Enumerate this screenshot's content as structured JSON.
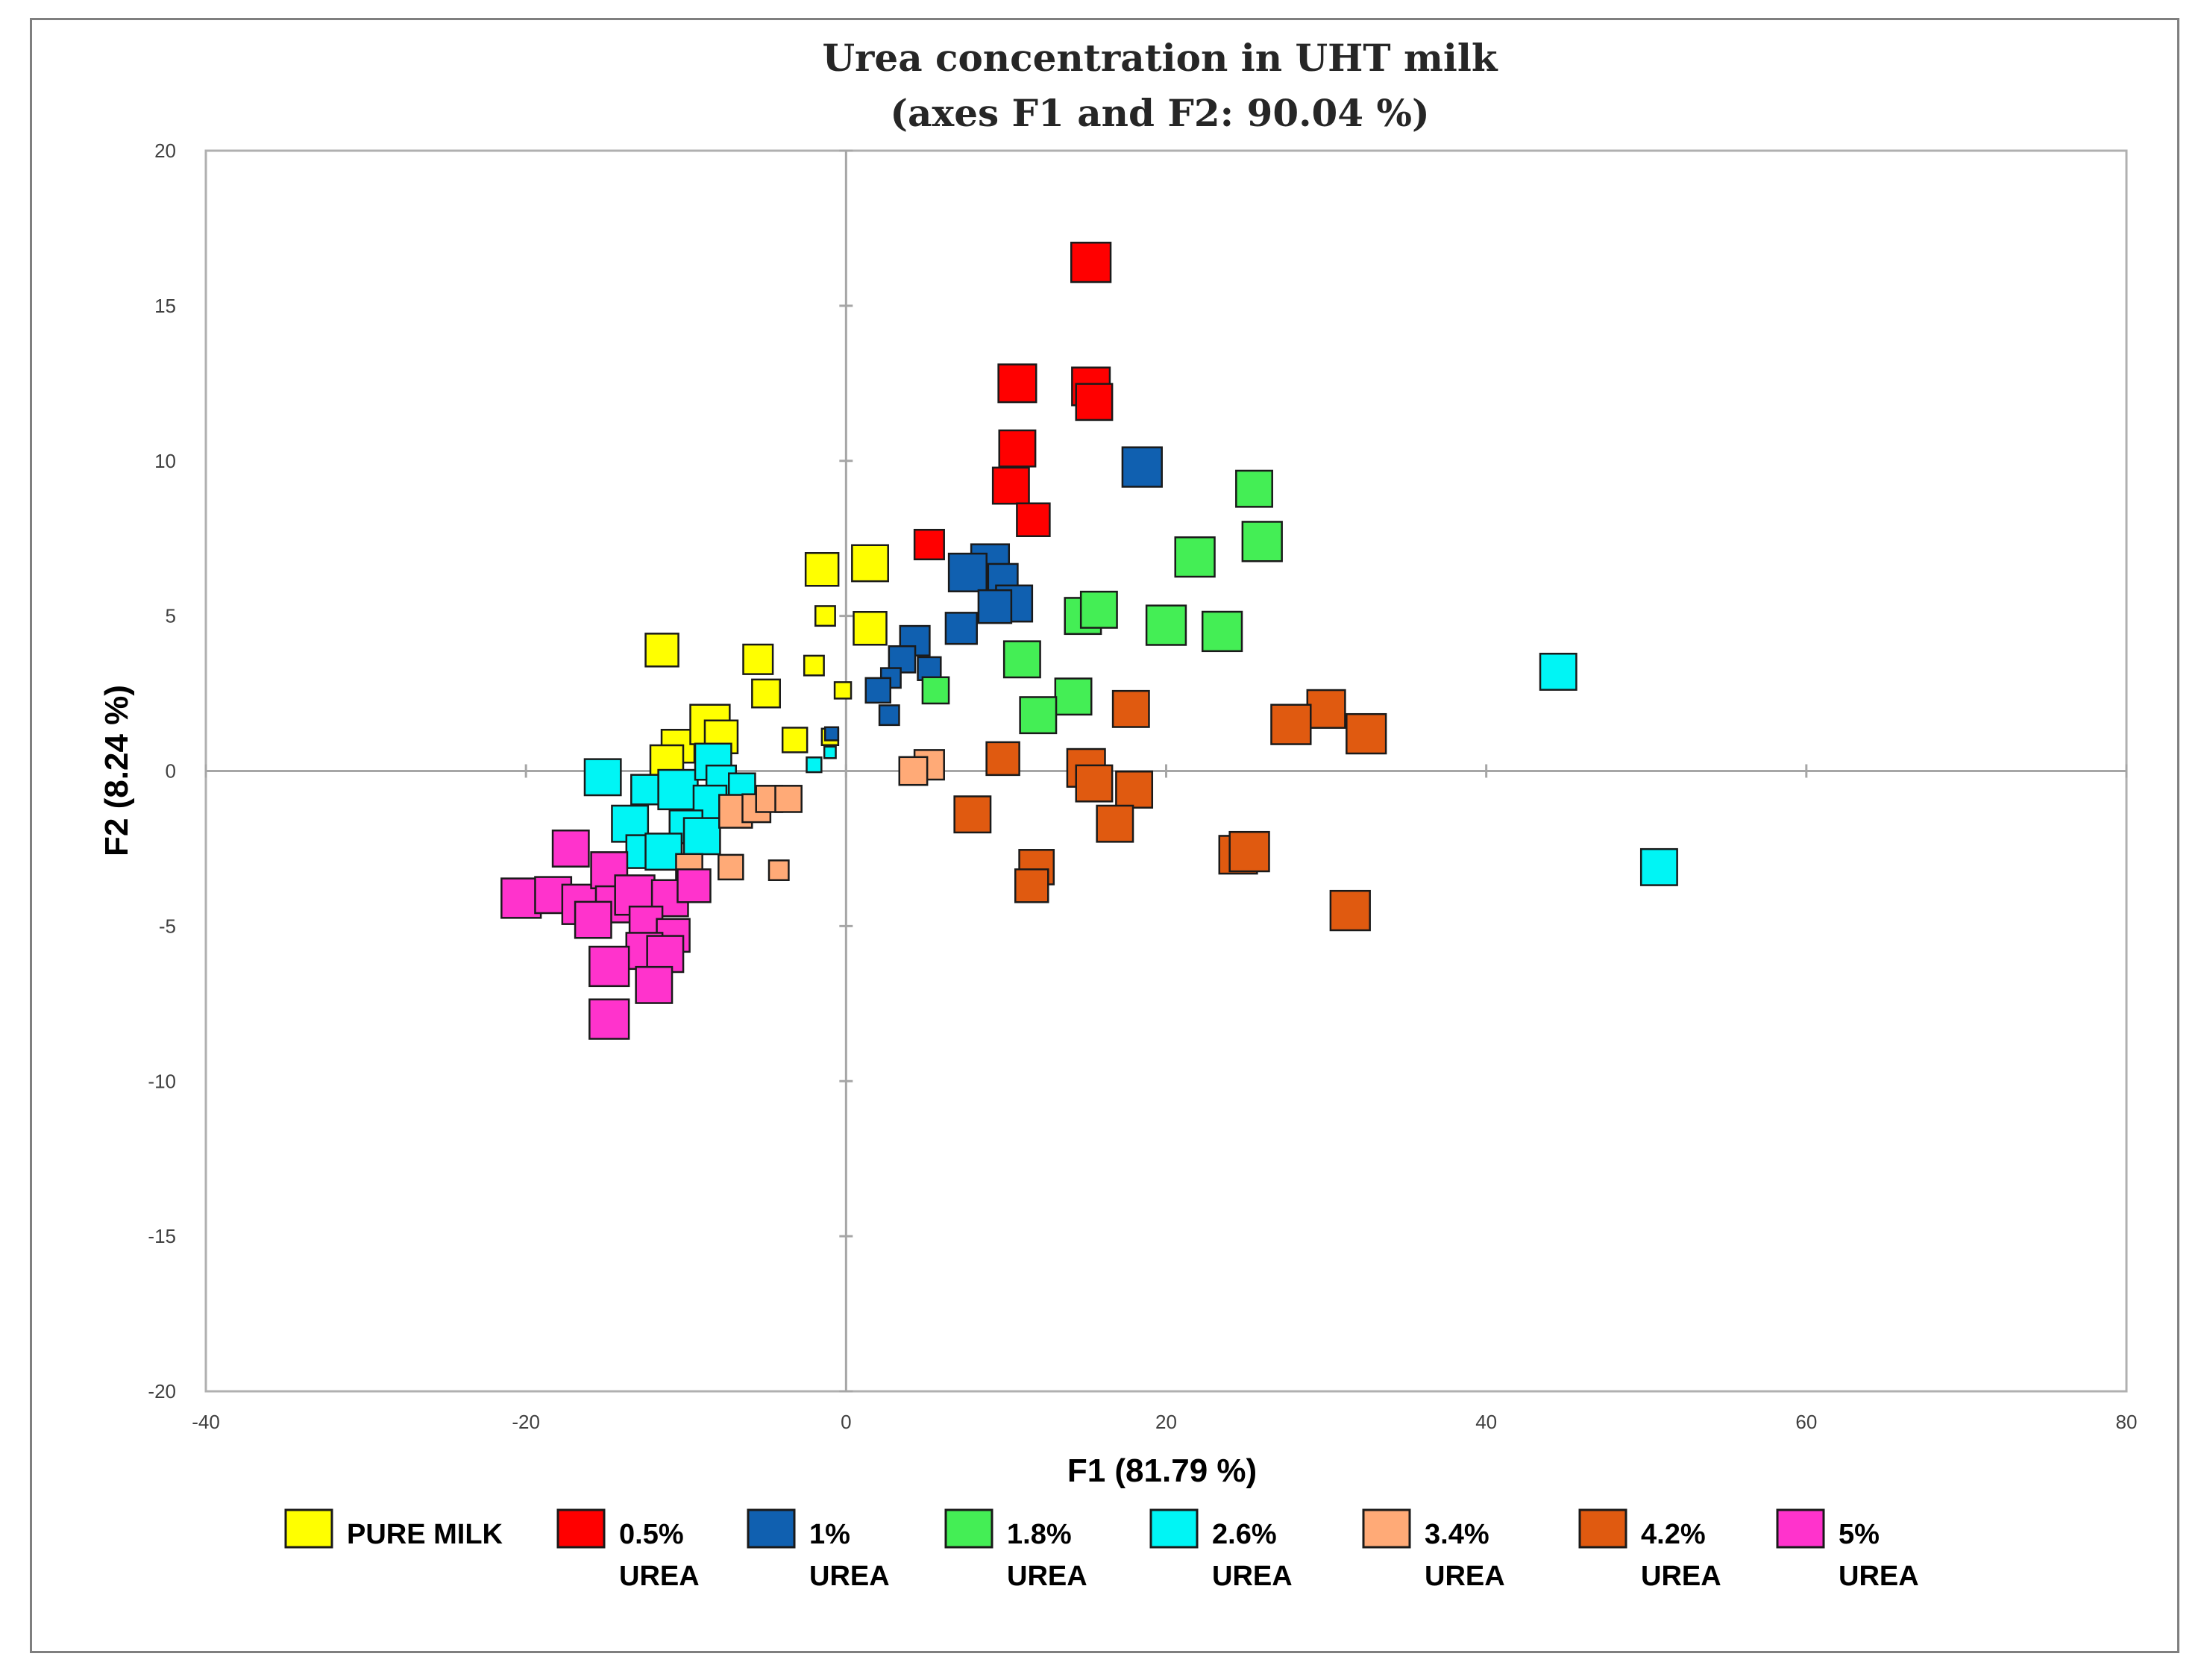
{
  "chart_data": {
    "type": "scatter",
    "title": "Urea concentration in UHT milk",
    "subtitle": "(axes F1 and F2: 90.04 %)",
    "xlabel": "F1 (81.79 %)",
    "ylabel": "F2 (8.24 %)",
    "xlim": [
      -40,
      80
    ],
    "ylim": [
      -20,
      20
    ],
    "x_ticks": [
      -40,
      -20,
      0,
      20,
      40,
      60,
      80
    ],
    "y_ticks": [
      -20,
      -15,
      -10,
      -5,
      0,
      5,
      10,
      15,
      20
    ],
    "x_tick_labels": [
      "-40",
      "-20",
      "0",
      "20",
      "40",
      "60",
      "80"
    ],
    "y_tick_labels": [
      "-20",
      "-15",
      "-10",
      "-5",
      "0",
      "5",
      "10",
      "15",
      "20"
    ],
    "grid": false,
    "legend_position": "bottom",
    "series": [
      {
        "name": "PURE MILK",
        "label_line1": "PURE MILK",
        "label_line2": "",
        "color": "#ffff00",
        "points": [
          {
            "x": -11.5,
            "y": 3.9,
            "s": 1.0
          },
          {
            "x": -1.5,
            "y": 6.5,
            "s": 1.0
          },
          {
            "x": 1.5,
            "y": 6.7,
            "s": 1.1
          },
          {
            "x": 1.5,
            "y": 4.6,
            "s": 1.0
          },
          {
            "x": -5.5,
            "y": 3.6,
            "s": 0.9
          },
          {
            "x": -5.0,
            "y": 2.5,
            "s": 0.85
          },
          {
            "x": -1.3,
            "y": 5.0,
            "s": 0.6
          },
          {
            "x": -2.0,
            "y": 3.4,
            "s": 0.6
          },
          {
            "x": -0.2,
            "y": 2.6,
            "s": 0.5
          },
          {
            "x": -1.0,
            "y": 1.1,
            "s": 0.5
          },
          {
            "x": -3.2,
            "y": 1.0,
            "s": 0.75
          },
          {
            "x": -10.5,
            "y": 0.8,
            "s": 1.0
          },
          {
            "x": -8.5,
            "y": 1.5,
            "s": 1.2
          },
          {
            "x": -7.8,
            "y": 1.1,
            "s": 1.0
          },
          {
            "x": -11.2,
            "y": 0.3,
            "s": 1.0
          }
        ]
      },
      {
        "name": "0.5% UREA",
        "label_line1": "0.5%",
        "label_line2": "UREA",
        "color": "#ff0000",
        "points": [
          {
            "x": 15.3,
            "y": 16.4,
            "s": 1.2
          },
          {
            "x": 10.7,
            "y": 12.5,
            "s": 1.15
          },
          {
            "x": 15.3,
            "y": 12.4,
            "s": 1.15
          },
          {
            "x": 15.5,
            "y": 11.9,
            "s": 1.1
          },
          {
            "x": 10.7,
            "y": 10.4,
            "s": 1.1
          },
          {
            "x": 10.3,
            "y": 9.2,
            "s": 1.1
          },
          {
            "x": 11.7,
            "y": 8.1,
            "s": 1.0
          },
          {
            "x": 5.2,
            "y": 7.3,
            "s": 0.9
          }
        ]
      },
      {
        "name": "1% UREA",
        "label_line1": "1%",
        "label_line2": "UREA",
        "color": "#1060b0",
        "points": [
          {
            "x": 18.5,
            "y": 9.8,
            "s": 1.2
          },
          {
            "x": 9.0,
            "y": 6.7,
            "s": 1.15
          },
          {
            "x": 7.6,
            "y": 6.4,
            "s": 1.15
          },
          {
            "x": 9.8,
            "y": 6.2,
            "s": 0.9
          },
          {
            "x": 10.5,
            "y": 5.4,
            "s": 1.1
          },
          {
            "x": 9.3,
            "y": 5.3,
            "s": 1.0
          },
          {
            "x": 7.2,
            "y": 4.6,
            "s": 0.95
          },
          {
            "x": 4.3,
            "y": 4.2,
            "s": 0.9
          },
          {
            "x": 3.5,
            "y": 3.6,
            "s": 0.8
          },
          {
            "x": 5.2,
            "y": 3.3,
            "s": 0.7
          },
          {
            "x": 2.8,
            "y": 3.0,
            "s": 0.6
          },
          {
            "x": 2.0,
            "y": 2.6,
            "s": 0.75
          },
          {
            "x": 2.7,
            "y": 1.8,
            "s": 0.6
          },
          {
            "x": -0.9,
            "y": 1.2,
            "s": 0.4
          }
        ]
      },
      {
        "name": "1.8% UREA",
        "label_line1": "1.8%",
        "label_line2": "UREA",
        "color": "#44ee55",
        "points": [
          {
            "x": 25.5,
            "y": 9.1,
            "s": 1.1
          },
          {
            "x": 21.8,
            "y": 6.9,
            "s": 1.2
          },
          {
            "x": 26.0,
            "y": 7.4,
            "s": 1.2
          },
          {
            "x": 14.8,
            "y": 5.0,
            "s": 1.1
          },
          {
            "x": 15.8,
            "y": 5.2,
            "s": 1.1
          },
          {
            "x": 20.0,
            "y": 4.7,
            "s": 1.2
          },
          {
            "x": 23.5,
            "y": 4.5,
            "s": 1.2
          },
          {
            "x": 11.0,
            "y": 3.6,
            "s": 1.1
          },
          {
            "x": 14.2,
            "y": 2.4,
            "s": 1.1
          },
          {
            "x": 12.0,
            "y": 1.8,
            "s": 1.1
          },
          {
            "x": 5.6,
            "y": 2.6,
            "s": 0.8
          }
        ]
      },
      {
        "name": "2.6% UREA",
        "label_line1": "2.6%",
        "label_line2": "UREA",
        "color": "#00f5f5",
        "points": [
          {
            "x": 44.5,
            "y": 3.2,
            "s": 1.1
          },
          {
            "x": 50.8,
            "y": -3.1,
            "s": 1.1
          },
          {
            "x": -15.2,
            "y": -0.2,
            "s": 1.1
          },
          {
            "x": -12.5,
            "y": -0.6,
            "s": 0.9
          },
          {
            "x": -10.5,
            "y": -0.6,
            "s": 1.2
          },
          {
            "x": -8.3,
            "y": 0.3,
            "s": 1.1
          },
          {
            "x": -7.8,
            "y": -0.3,
            "s": 0.9
          },
          {
            "x": -6.5,
            "y": -0.5,
            "s": 0.8
          },
          {
            "x": -8.5,
            "y": -1.0,
            "s": 1.0
          },
          {
            "x": -13.5,
            "y": -1.7,
            "s": 1.1
          },
          {
            "x": -10.0,
            "y": -1.8,
            "s": 1.0
          },
          {
            "x": -9.0,
            "y": -2.1,
            "s": 1.1
          },
          {
            "x": -12.7,
            "y": -2.6,
            "s": 1.0
          },
          {
            "x": -11.4,
            "y": -2.6,
            "s": 1.1
          },
          {
            "x": -2.0,
            "y": 0.2,
            "s": 0.45
          },
          {
            "x": -1.0,
            "y": 0.6,
            "s": 0.35
          }
        ]
      },
      {
        "name": "3.4% UREA",
        "label_line1": "3.4%",
        "label_line2": "UREA",
        "color": "#ffaa77",
        "points": [
          {
            "x": 5.2,
            "y": 0.2,
            "s": 0.9
          },
          {
            "x": 4.2,
            "y": 0.0,
            "s": 0.85
          },
          {
            "x": -6.9,
            "y": -1.3,
            "s": 1.0
          },
          {
            "x": -5.6,
            "y": -1.2,
            "s": 0.85
          },
          {
            "x": -4.8,
            "y": -0.9,
            "s": 0.8
          },
          {
            "x": -3.6,
            "y": -0.9,
            "s": 0.8
          },
          {
            "x": -7.2,
            "y": -3.1,
            "s": 0.75
          },
          {
            "x": -4.2,
            "y": -3.2,
            "s": 0.6
          },
          {
            "x": -9.8,
            "y": -3.1,
            "s": 0.8
          }
        ]
      },
      {
        "name": "4.2% UREA",
        "label_line1": "4.2%",
        "label_line2": "UREA",
        "color": "#e05a10",
        "points": [
          {
            "x": 30.0,
            "y": 2.0,
            "s": 1.15
          },
          {
            "x": 32.5,
            "y": 1.2,
            "s": 1.2
          },
          {
            "x": 27.8,
            "y": 1.5,
            "s": 1.2
          },
          {
            "x": 17.8,
            "y": 2.0,
            "s": 1.1
          },
          {
            "x": 9.8,
            "y": 0.4,
            "s": 1.0
          },
          {
            "x": 15.0,
            "y": 0.1,
            "s": 1.15
          },
          {
            "x": 15.5,
            "y": -0.4,
            "s": 1.1
          },
          {
            "x": 18.0,
            "y": -0.6,
            "s": 1.1
          },
          {
            "x": 7.9,
            "y": -1.4,
            "s": 1.1
          },
          {
            "x": 16.8,
            "y": -1.7,
            "s": 1.1
          },
          {
            "x": 11.9,
            "y": -3.1,
            "s": 1.05
          },
          {
            "x": 11.6,
            "y": -3.7,
            "s": 1.0
          },
          {
            "x": 24.5,
            "y": -2.7,
            "s": 1.15
          },
          {
            "x": 25.2,
            "y": -2.6,
            "s": 1.2
          },
          {
            "x": 31.5,
            "y": -4.5,
            "s": 1.2
          }
        ]
      },
      {
        "name": "5% UREA",
        "label_line1": "5%",
        "label_line2": "UREA",
        "color": "#ff33cc",
        "points": [
          {
            "x": -17.2,
            "y": -2.5,
            "s": 1.1
          },
          {
            "x": -20.3,
            "y": -4.1,
            "s": 1.2
          },
          {
            "x": -18.3,
            "y": -4.0,
            "s": 1.1
          },
          {
            "x": -16.5,
            "y": -4.3,
            "s": 1.2
          },
          {
            "x": -14.8,
            "y": -3.2,
            "s": 1.1
          },
          {
            "x": -14.5,
            "y": -4.3,
            "s": 1.1
          },
          {
            "x": -13.2,
            "y": -4.0,
            "s": 1.2
          },
          {
            "x": -11.0,
            "y": -4.1,
            "s": 1.1
          },
          {
            "x": -15.8,
            "y": -4.8,
            "s": 1.1
          },
          {
            "x": -12.5,
            "y": -4.9,
            "s": 1.0
          },
          {
            "x": -10.8,
            "y": -5.3,
            "s": 1.0
          },
          {
            "x": -12.6,
            "y": -5.8,
            "s": 1.1
          },
          {
            "x": -11.3,
            "y": -5.9,
            "s": 1.1
          },
          {
            "x": -14.8,
            "y": -6.3,
            "s": 1.2
          },
          {
            "x": -12.0,
            "y": -6.9,
            "s": 1.1
          },
          {
            "x": -14.8,
            "y": -8.0,
            "s": 1.2
          },
          {
            "x": -9.5,
            "y": -3.7,
            "s": 1.0
          }
        ]
      }
    ]
  }
}
